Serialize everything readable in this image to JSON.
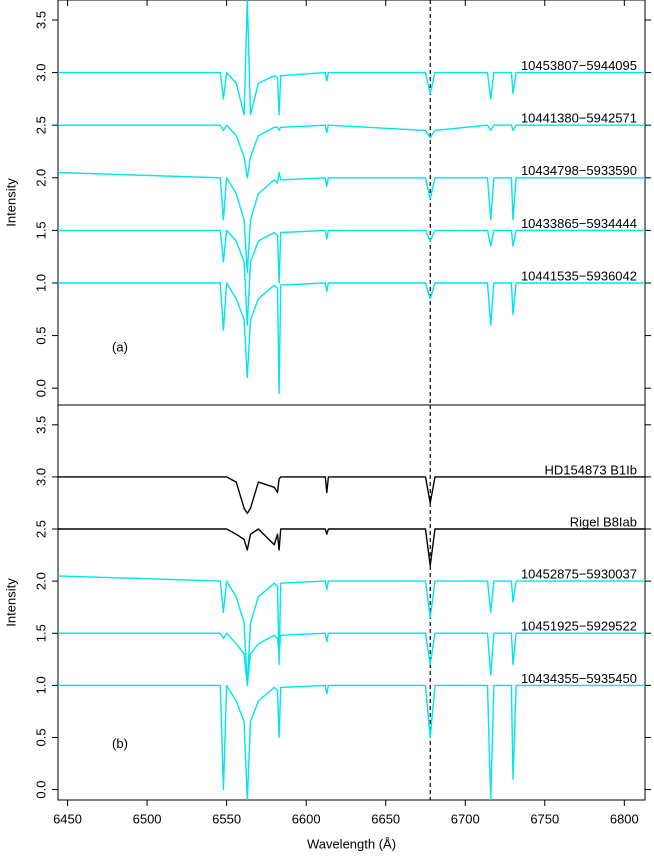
{
  "chart_data": [
    {
      "type": "line",
      "ylabel": "Intensity",
      "annotation": "(a)",
      "xlim": [
        6444,
        6813
      ],
      "ylim": [
        -0.16,
        3.69
      ],
      "yticks": [
        {
          "value": 0,
          "label": "0.0"
        },
        0.5,
        {
          "value": 1,
          "label": "1.0"
        },
        1.5,
        {
          "value": 2,
          "label": "2.0"
        },
        2.5,
        {
          "value": 3,
          "label": "3.0"
        },
        3.5
      ],
      "vline": 6678,
      "x": [
        6444,
        6546,
        6548,
        6550,
        6556,
        6561,
        6563,
        6565,
        6570,
        6580,
        6582,
        6583,
        6584,
        6612,
        6613,
        6614,
        6675,
        6678,
        6681,
        6714,
        6716,
        6718,
        6729,
        6730,
        6732,
        6813
      ],
      "series": [
        {
          "name": "10453807−5944095",
          "color": "#00e5ee",
          "values": [
            3.0,
            3.0,
            2.75,
            3.0,
            2.9,
            2.6,
            3.69,
            2.6,
            2.9,
            2.97,
            2.95,
            2.6,
            2.97,
            3.0,
            2.92,
            3.0,
            3.0,
            2.8,
            3.0,
            3.0,
            2.75,
            3.0,
            3.0,
            2.8,
            3.0,
            3.0
          ]
        },
        {
          "name": "10441380−5942571",
          "color": "#00e5ee",
          "values": [
            2.5,
            2.5,
            2.45,
            2.5,
            2.4,
            2.2,
            2.0,
            2.2,
            2.4,
            2.48,
            2.48,
            2.45,
            2.48,
            2.5,
            2.43,
            2.5,
            2.45,
            2.38,
            2.45,
            2.5,
            2.45,
            2.5,
            2.5,
            2.45,
            2.5,
            2.5
          ]
        },
        {
          "name": "10434798−5933590",
          "color": "#00e5ee",
          "values": [
            2.05,
            2.0,
            1.6,
            2.0,
            1.85,
            1.6,
            1.1,
            1.6,
            1.85,
            1.98,
            1.95,
            2.05,
            1.98,
            2.0,
            1.92,
            2.0,
            2.0,
            1.8,
            2.0,
            2.0,
            1.6,
            2.0,
            2.0,
            1.6,
            2.0,
            2.0
          ]
        },
        {
          "name": "10433865−5934444",
          "color": "#00e5ee",
          "values": [
            1.5,
            1.5,
            1.2,
            1.5,
            1.4,
            1.2,
            0.6,
            1.2,
            1.4,
            1.48,
            1.45,
            1.0,
            1.48,
            1.5,
            1.42,
            1.5,
            1.5,
            1.4,
            1.5,
            1.5,
            1.35,
            1.5,
            1.5,
            1.35,
            1.5,
            1.5
          ]
        },
        {
          "name": "10441535−5936042",
          "color": "#00e5ee",
          "values": [
            1.0,
            1.0,
            0.55,
            1.0,
            0.85,
            0.65,
            0.1,
            0.65,
            0.85,
            0.98,
            0.95,
            -0.05,
            0.98,
            1.0,
            0.92,
            1.0,
            1.0,
            0.85,
            1.0,
            1.0,
            0.6,
            1.0,
            1.0,
            0.7,
            1.0,
            1.0
          ]
        }
      ]
    },
    {
      "type": "line",
      "xlabel": "Wavelength (Å)",
      "ylabel": "Intensity",
      "annotation": "(b)",
      "xlim": [
        6444,
        6813
      ],
      "ylim": [
        -0.1,
        3.69
      ],
      "xticks": [
        6450,
        6500,
        6550,
        6600,
        6650,
        6700,
        6750,
        6800
      ],
      "yticks": [
        {
          "value": 0,
          "label": "0.0"
        },
        0.5,
        {
          "value": 1,
          "label": "1.0"
        },
        1.5,
        {
          "value": 2,
          "label": "2.0"
        },
        2.5,
        {
          "value": 3,
          "label": "3.0"
        },
        3.5
      ],
      "vline": 6678,
      "x": [
        6444,
        6546,
        6548,
        6550,
        6556,
        6561,
        6563,
        6565,
        6570,
        6580,
        6582,
        6583,
        6584,
        6612,
        6613,
        6614,
        6675,
        6678,
        6681,
        6714,
        6716,
        6718,
        6729,
        6730,
        6732,
        6813
      ],
      "series": [
        {
          "name": "HD154873  B1Ib",
          "color": "#000000",
          "values": [
            3.0,
            3.0,
            3.0,
            3.0,
            2.95,
            2.7,
            2.65,
            2.7,
            2.95,
            2.9,
            2.85,
            2.98,
            3.0,
            3.0,
            2.85,
            3.0,
            3.0,
            2.75,
            3.0,
            3.0,
            3.0,
            3.0,
            3.0,
            3.0,
            3.0,
            3.0
          ]
        },
        {
          "name": "Rigel  B8Iab",
          "color": "#000000",
          "values": [
            2.5,
            2.5,
            2.5,
            2.5,
            2.45,
            2.4,
            2.3,
            2.45,
            2.5,
            2.35,
            2.45,
            2.3,
            2.5,
            2.5,
            2.45,
            2.5,
            2.5,
            2.15,
            2.5,
            2.5,
            2.5,
            2.5,
            2.5,
            2.5,
            2.5,
            2.5
          ]
        },
        {
          "name": "10452875−5930037",
          "color": "#00e5ee",
          "values": [
            2.05,
            2.0,
            1.7,
            2.0,
            1.85,
            1.6,
            1.0,
            1.6,
            1.85,
            1.98,
            1.95,
            1.2,
            1.98,
            2.0,
            1.92,
            2.0,
            2.0,
            1.65,
            2.0,
            2.0,
            1.7,
            2.0,
            2.0,
            1.8,
            2.0,
            2.0
          ]
        },
        {
          "name": "10451925−5929522",
          "color": "#00e5ee",
          "values": [
            1.5,
            1.5,
            1.45,
            1.5,
            1.4,
            1.3,
            1.0,
            1.3,
            1.4,
            1.48,
            1.45,
            1.3,
            1.48,
            1.5,
            1.42,
            1.5,
            1.5,
            1.2,
            1.5,
            1.5,
            1.1,
            1.5,
            1.5,
            1.2,
            1.5,
            1.5
          ]
        },
        {
          "name": "10434355−5935450",
          "color": "#00e5ee",
          "values": [
            1.0,
            1.0,
            0.0,
            1.0,
            0.85,
            0.65,
            -0.1,
            0.65,
            0.85,
            0.98,
            0.95,
            0.5,
            0.98,
            1.0,
            0.92,
            1.0,
            1.0,
            0.5,
            1.0,
            1.0,
            -0.1,
            1.0,
            1.0,
            0.1,
            1.0,
            1.0
          ]
        }
      ]
    }
  ]
}
